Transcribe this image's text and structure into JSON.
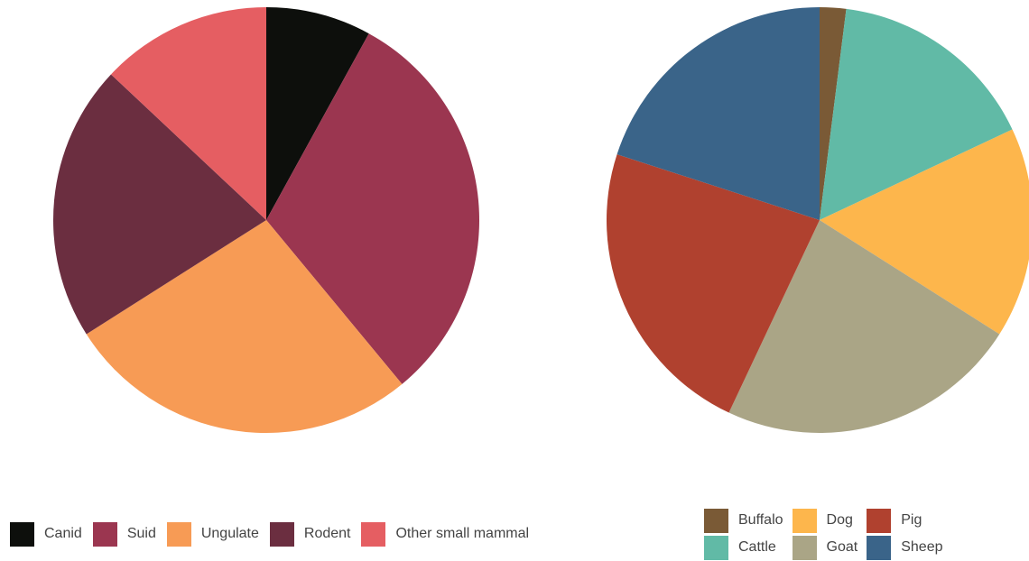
{
  "chart_data": [
    {
      "type": "pie",
      "title": "",
      "legend_position": "bottom",
      "slices": [
        {
          "label": "Canid",
          "value": 8,
          "color": "#0d0f0c"
        },
        {
          "label": "Suid",
          "value": 31,
          "color": "#9b3650"
        },
        {
          "label": "Ungulate",
          "value": 27,
          "color": "#f79b55"
        },
        {
          "label": "Rodent",
          "value": 21,
          "color": "#6b2e40"
        },
        {
          "label": "Other small mammal",
          "value": 13,
          "color": "#e55e62"
        }
      ]
    },
    {
      "type": "pie",
      "title": "",
      "legend_position": "bottom",
      "slices": [
        {
          "label": "Buffalo",
          "value": 2,
          "color": "#7a5a36"
        },
        {
          "label": "Cattle",
          "value": 16,
          "color": "#61baa6"
        },
        {
          "label": "Dog",
          "value": 16,
          "color": "#fdb64c"
        },
        {
          "label": "Goat",
          "value": 23,
          "color": "#aaa586"
        },
        {
          "label": "Pig",
          "value": 23,
          "color": "#b0412f"
        },
        {
          "label": "Sheep",
          "value": 20,
          "color": "#3a6489"
        }
      ]
    }
  ]
}
